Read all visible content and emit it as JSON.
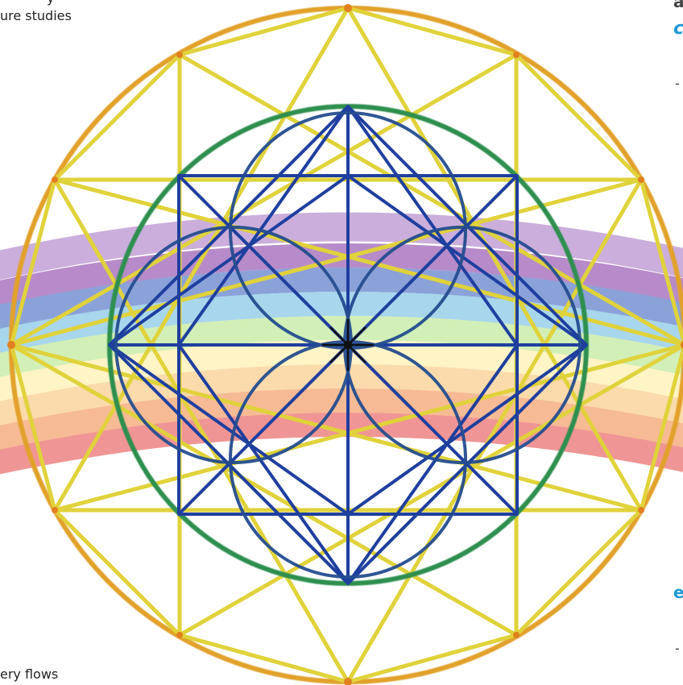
{
  "fragments": {
    "top_left_partial": "y",
    "top_left": "ure studies",
    "bottom_left": "ery flows",
    "right_1": "a",
    "right_2": "c",
    "right_3": "-",
    "right_4": "e",
    "right_5": "-"
  },
  "colors": {
    "outer": "#e2a12a",
    "mid": "#e0d23a",
    "green": "#2f8f4f",
    "blue": "#1f3f9f",
    "center": "#111111"
  },
  "rainbow_bands": [
    "#ef8a8a",
    "#f6b389",
    "#fbd7a2",
    "#fff3bf",
    "#cdeeb0",
    "#9fd2ea",
    "#7f99d5",
    "#b07fc4",
    "#c6a6d8"
  ]
}
